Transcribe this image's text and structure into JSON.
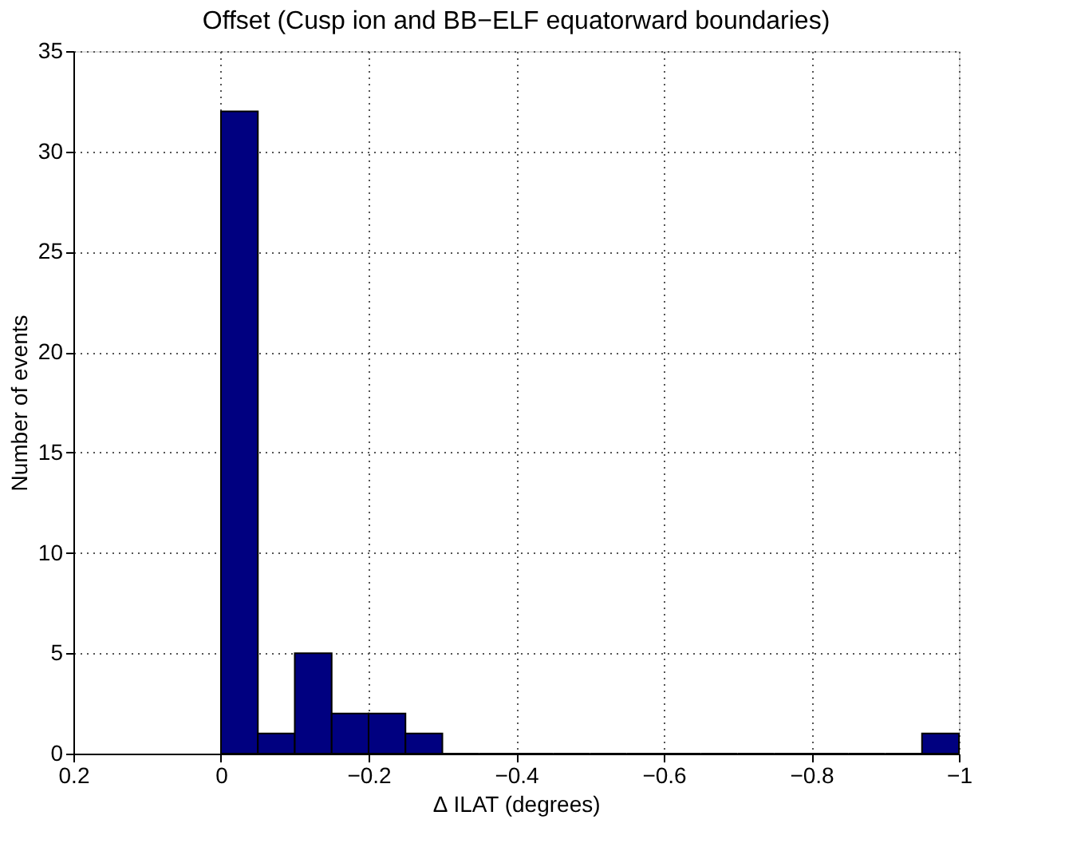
{
  "chart_data": {
    "type": "histogram",
    "title": "Offset (Cusp ion and BB−ELF equatorward boundaries)",
    "xlabel": "∆ ILAT (degrees)",
    "ylabel": "Number of events",
    "bins": [
      0,
      -0.05,
      -0.1,
      -0.15,
      -0.2,
      -0.25,
      -0.3,
      -0.35,
      -0.4,
      -0.45,
      -0.5,
      -0.55,
      -0.6,
      -0.65,
      -0.7,
      -0.75,
      -0.8,
      -0.85,
      -0.9,
      -0.95,
      -1.0
    ],
    "values": [
      32,
      1,
      5,
      2,
      2,
      1,
      0,
      0,
      0,
      0,
      0,
      0,
      0,
      0,
      0,
      0,
      0,
      0,
      0,
      1
    ],
    "color": "#000080",
    "xlim": [
      0.2,
      -1
    ],
    "xticks": [
      0.2,
      0,
      {
        "value": -0.2,
        "label": "−0.2"
      },
      {
        "value": -0.4,
        "label": "−0.4"
      },
      {
        "value": -0.6,
        "label": "−0.6"
      },
      {
        "value": -0.8,
        "label": "−0.8"
      },
      {
        "value": -1,
        "label": "−1"
      }
    ],
    "ylim": [
      0,
      35
    ],
    "yticks": [
      0,
      5,
      10,
      15,
      20,
      25,
      30,
      35
    ],
    "grid": true
  }
}
